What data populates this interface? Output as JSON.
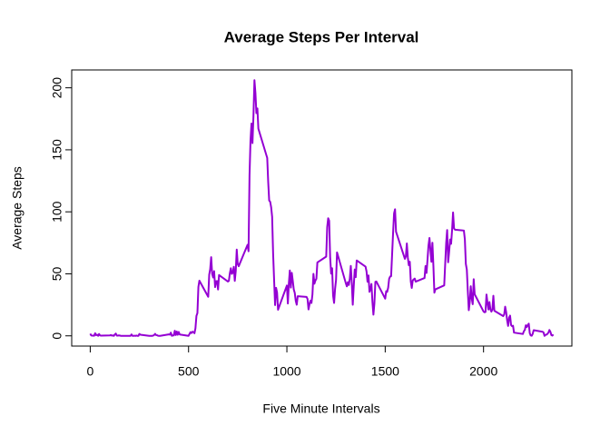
{
  "chart_data": {
    "type": "line",
    "title": "Average Steps Per Interval",
    "xlabel": "Five Minute Intervals",
    "ylabel": "Average Steps",
    "x": [
      0,
      5,
      10,
      15,
      20,
      25,
      30,
      35,
      40,
      45,
      50,
      55,
      100,
      105,
      110,
      115,
      120,
      125,
      130,
      135,
      140,
      145,
      150,
      155,
      200,
      205,
      210,
      215,
      220,
      225,
      230,
      235,
      240,
      245,
      250,
      255,
      300,
      305,
      310,
      315,
      320,
      325,
      330,
      335,
      340,
      345,
      350,
      355,
      400,
      405,
      410,
      415,
      420,
      425,
      430,
      435,
      440,
      445,
      450,
      455,
      500,
      505,
      510,
      515,
      520,
      525,
      530,
      535,
      540,
      545,
      550,
      555,
      600,
      605,
      610,
      615,
      620,
      625,
      630,
      635,
      640,
      645,
      650,
      655,
      700,
      705,
      710,
      715,
      720,
      725,
      730,
      735,
      740,
      745,
      750,
      755,
      800,
      805,
      810,
      815,
      820,
      825,
      830,
      835,
      840,
      845,
      850,
      855,
      900,
      905,
      910,
      915,
      920,
      925,
      930,
      935,
      940,
      945,
      950,
      955,
      1000,
      1005,
      1010,
      1015,
      1020,
      1025,
      1030,
      1035,
      1040,
      1045,
      1050,
      1055,
      1100,
      1105,
      1110,
      1115,
      1120,
      1125,
      1130,
      1135,
      1140,
      1145,
      1150,
      1155,
      1200,
      1205,
      1210,
      1215,
      1220,
      1225,
      1230,
      1235,
      1240,
      1245,
      1250,
      1255,
      1300,
      1305,
      1310,
      1315,
      1320,
      1325,
      1330,
      1335,
      1340,
      1345,
      1350,
      1355,
      1400,
      1405,
      1410,
      1415,
      1420,
      1425,
      1430,
      1435,
      1440,
      1445,
      1450,
      1455,
      1500,
      1505,
      1510,
      1515,
      1520,
      1525,
      1530,
      1535,
      1540,
      1545,
      1550,
      1555,
      1600,
      1605,
      1610,
      1615,
      1620,
      1625,
      1630,
      1635,
      1640,
      1645,
      1650,
      1655,
      1700,
      1705,
      1710,
      1715,
      1720,
      1725,
      1730,
      1735,
      1740,
      1745,
      1750,
      1755,
      1800,
      1805,
      1810,
      1815,
      1820,
      1825,
      1830,
      1835,
      1840,
      1845,
      1850,
      1855,
      1900,
      1905,
      1910,
      1915,
      1920,
      1925,
      1930,
      1935,
      1940,
      1945,
      1950,
      1955,
      2000,
      2005,
      2010,
      2015,
      2020,
      2025,
      2030,
      2035,
      2040,
      2045,
      2050,
      2055,
      2100,
      2105,
      2110,
      2115,
      2120,
      2125,
      2130,
      2135,
      2140,
      2145,
      2150,
      2155,
      2200,
      2205,
      2210,
      2215,
      2220,
      2225,
      2230,
      2235,
      2240,
      2245,
      2250,
      2255,
      2300,
      2305,
      2310,
      2315,
      2320,
      2325,
      2330,
      2335,
      2340,
      2345,
      2350,
      2355
    ],
    "series": [
      {
        "name": "Average Steps",
        "color": "#9400d3",
        "values": [
          1.72,
          0.34,
          0.13,
          0.15,
          0.08,
          2.09,
          0.53,
          0.87,
          0,
          1.47,
          0.3,
          0.13,
          0.32,
          0.68,
          0.15,
          0.34,
          0,
          1.11,
          1.83,
          0.17,
          0.17,
          0.38,
          0.26,
          0,
          0,
          0,
          1.13,
          0,
          0,
          0.13,
          0,
          0.23,
          0,
          0,
          1.55,
          0.94,
          0,
          0,
          0,
          0,
          0.21,
          0.62,
          1.62,
          0.58,
          0.49,
          0.08,
          0,
          0,
          1.19,
          0.94,
          2.57,
          0,
          0.34,
          0.36,
          4.11,
          0.66,
          3.49,
          0.83,
          3.11,
          1.11,
          0,
          1.57,
          3,
          2.25,
          3.32,
          2.96,
          2.09,
          6.06,
          16.02,
          18.34,
          39.45,
          44.49,
          31.49,
          49.26,
          53.77,
          63.45,
          49.96,
          47.08,
          52.15,
          39.34,
          44.02,
          44.17,
          37.36,
          49.04,
          43.81,
          44.38,
          50.51,
          54.51,
          49.92,
          50.98,
          55.68,
          44.32,
          52.26,
          69.55,
          57.85,
          56.15,
          73.38,
          68.21,
          129.43,
          157.53,
          171.15,
          155.4,
          177.3,
          206.17,
          195.92,
          179.57,
          183.4,
          167.02,
          143.45,
          124.04,
          109.11,
          108.11,
          103.72,
          95.97,
          66.21,
          45.23,
          24.79,
          38.75,
          34.98,
          21.06,
          40.6,
          26.1,
          42.4,
          52.7,
          38.9,
          50.8,
          44.3,
          37.4,
          34.7,
          28.3,
          25.1,
          31.9,
          31.4,
          29.7,
          21.3,
          25.5,
          28.4,
          26.5,
          33.4,
          49.98,
          42,
          44.6,
          46,
          59.2,
          63.9,
          87.7,
          94.8,
          92.8,
          63.4,
          50.2,
          54.5,
          32.4,
          26.5,
          37.7,
          45.1,
          67.3,
          42.3,
          39.9,
          43.3,
          40.98,
          46.2,
          56.4,
          42.8,
          25.1,
          39.97,
          53.5,
          47.3,
          60.8,
          55.8,
          51.96,
          43.6,
          48.7,
          35.5,
          37.5,
          41.8,
          27.5,
          17.1,
          26.1,
          43.6,
          43.8,
          30,
          36.1,
          35.5,
          38.8,
          46,
          47.8,
          48.1,
          65.3,
          82.9,
          98.7,
          102.1,
          83.96,
          62.1,
          64.1,
          74.5,
          63.2,
          56.9,
          59.8,
          43.9,
          38.6,
          44.7,
          45.5,
          46.2,
          43.7,
          46.6,
          56.3,
          50.7,
          61.2,
          72.7,
          78.9,
          68.9,
          59.7,
          75.1,
          56.5,
          34.8,
          37.5,
          40.7,
          58,
          74.7,
          85.3,
          59.3,
          67.8,
          77.7,
          74.2,
          85.3,
          99.5,
          86.6,
          85.6,
          84.9,
          77.8,
          58,
          53.4,
          36.3,
          20.7,
          27.4,
          40,
          30.2,
          25.5,
          45.7,
          33.5,
          19.6,
          19,
          19.3,
          33.3,
          26.8,
          21.2,
          27.3,
          21.3,
          19.5,
          21.3,
          32.3,
          20.2,
          15.9,
          17.2,
          23.5,
          19.2,
          12.5,
          8,
          14.7,
          16.3,
          8.7,
          7.8,
          8.1,
          2.6,
          1.5,
          3.7,
          4.8,
          8.5,
          7.1,
          8.7,
          9.8,
          2.2,
          0.3,
          0.1,
          1.6,
          4.6,
          3.3,
          2.8,
          0,
          0.8,
          0.96,
          1.6,
          2.6,
          4.7,
          3.3,
          0.6,
          0.2,
          1.1
        ]
      }
    ],
    "xlim": [
      -94.2,
      2449.2
    ],
    "ylim": [
      -8.25,
      214.4
    ],
    "xticks": [
      0,
      500,
      1000,
      1500,
      2000
    ],
    "yticks": [
      0,
      50,
      100,
      150,
      200
    ]
  }
}
